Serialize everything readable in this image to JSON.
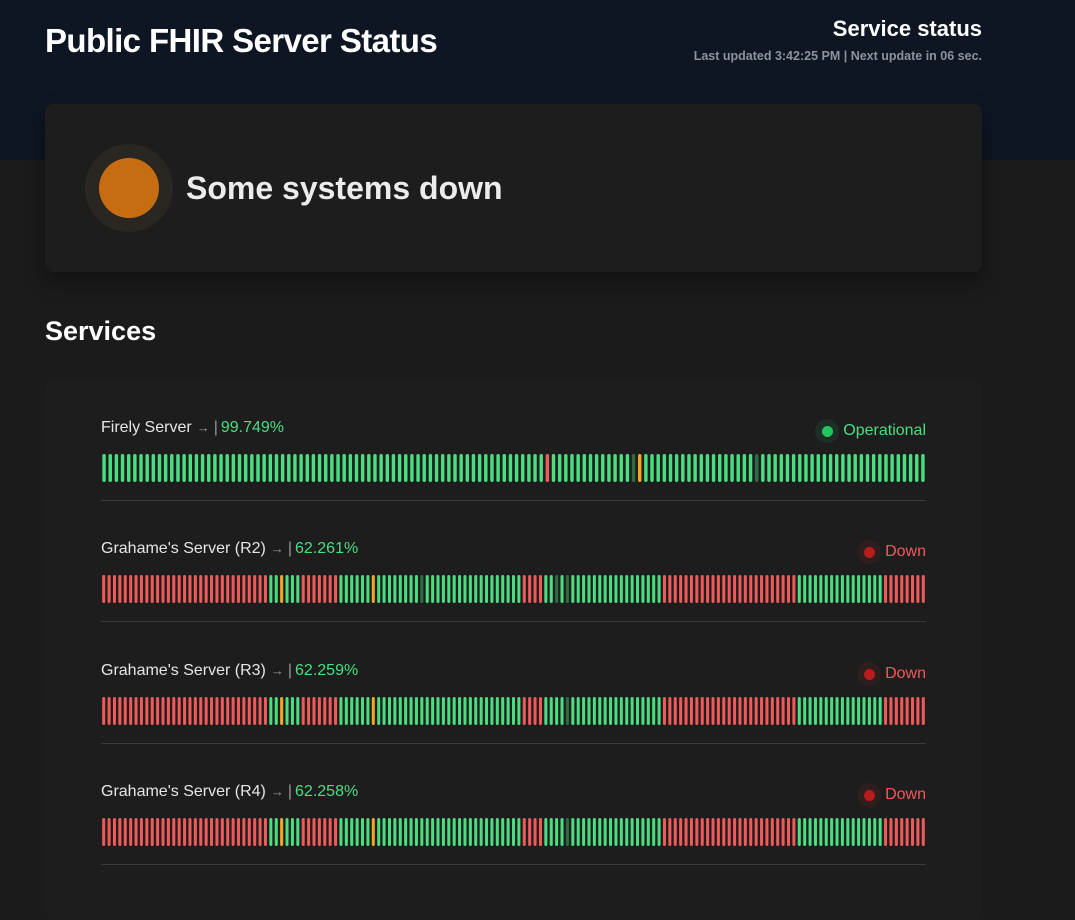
{
  "header": {
    "title": "Public FHIR Server Status",
    "status_title": "Service status",
    "last_updated": "Last updated 3:42:25 PM | Next update in 06 sec."
  },
  "hero": {
    "status_text": "Some systems down",
    "status_color": "#c66d12"
  },
  "services_heading": "Services",
  "colors": {
    "up": "#4ade80",
    "down": "#ef5a5a",
    "degraded": "#f5a623",
    "no_data": "#2f6b45",
    "operational": "#22c55e",
    "down_state": "#b91c1c"
  },
  "services": [
    {
      "name": "Firely Server",
      "arrow": "→",
      "sep": "|",
      "uptime": "99.749%",
      "state": "Operational",
      "state_color": "#4ade80",
      "dot_color": "#22c55e",
      "halo_color": "#1d2e24",
      "bars": "UUUUUUUUUUUUUUUUUUUUUUUUUUUUUUUUUUUUUUUUUUUUUUUUUUUUUUUUUUUUUUUUUUUUUUUUDUUUUUUUUUUUUUNYUUUUUUUUUUUUUUUUUUNUUUUUUUUUUUUUUUUUUUUUUUUUUU"
    },
    {
      "name": "Grahame's Server (R2)",
      "arrow": "→",
      "sep": "|",
      "uptime": "62.261%",
      "state": "Down",
      "state_color": "#ef5a5a",
      "dot_color": "#b91c1c",
      "halo_color": "#2e1e1e",
      "bars": "DDDDDDDDDDDDDDDDDDDDDDDDDDDDDDDUUYUUUDDDDDDDUUUUUUYUUUUUUUUNUUUUUUUUUUUUUUUUUUDDDDUUNUNUUUUUUUUUUUUUUUUUDDDDDDDDDDDDDDDDDDDDDDDDDUUUUUUUUUUUUUUUUDDDDDDDD"
    },
    {
      "name": "Grahame's Server (R3)",
      "arrow": "→",
      "sep": "|",
      "uptime": "62.259%",
      "state": "Down",
      "state_color": "#ef5a5a",
      "dot_color": "#b91c1c",
      "halo_color": "#2e1e1e",
      "bars": "DDDDDDDDDDDDDDDDDDDDDDDDDDDDDDDUUYUUUDDDDDDDUUUUUUYUUUUUUUUUUUUUUUUUUUUUUUUUUUDDDDUUUUNUUUUUUUUUUUUUUUUUDDDDDDDDDDDDDDDDDDDDDDDDDUUUUUUUUUUUUUUUUDDDDDDDD"
    },
    {
      "name": "Grahame's Server (R4)",
      "arrow": "→",
      "sep": "|",
      "uptime": "62.258%",
      "state": "Down",
      "state_color": "#ef5a5a",
      "dot_color": "#b91c1c",
      "halo_color": "#2e1e1e",
      "bars": "DDDDDDDDDDDDDDDDDDDDDDDDDDDDDDDUUYUUUDDDDDDDUUUUUUYUUUUUUUUUUUUUUUUUUUUUUUUUUUDDDDUUUUNUUUUUUUUUUUUUUUUUDDDDDDDDDDDDDDDDDDDDDDDDDUUUUUUUUUUUUUUUUDDDDDDDD"
    }
  ]
}
